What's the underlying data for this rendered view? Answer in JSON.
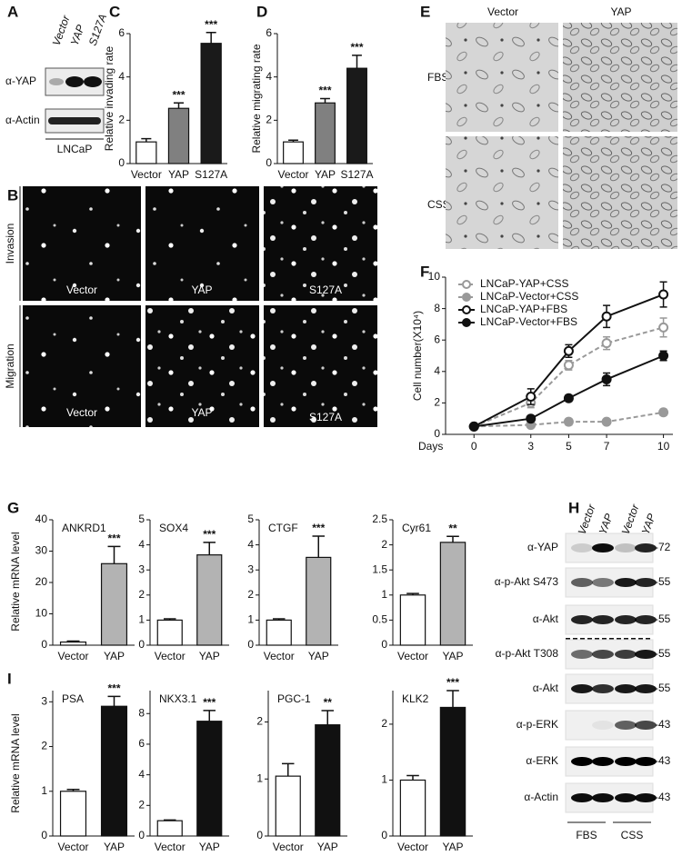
{
  "panel_labels": [
    "A",
    "B",
    "C",
    "D",
    "E",
    "F",
    "G",
    "H",
    "I"
  ],
  "blot_a": {
    "lanes": [
      "Vector",
      "YAP",
      "S127A"
    ],
    "rows": [
      "α-YAP",
      "α-Actin"
    ],
    "cell_line": "LNCaP"
  },
  "images_b": {
    "rows": [
      "Invasion",
      "Migration"
    ],
    "columns": [
      "Vector",
      "YAP",
      "S127A"
    ]
  },
  "images_e": {
    "columns": [
      "Vector",
      "YAP"
    ],
    "rows": [
      "FBS",
      "CSS"
    ]
  },
  "blot_h": {
    "lanes": [
      "Vector",
      "YAP",
      "Vector",
      "YAP"
    ],
    "rows": [
      {
        "label": "α-YAP",
        "mw": "-72"
      },
      {
        "label": "α-p-Akt S473",
        "mw": "-55"
      },
      {
        "label": "α-Akt",
        "mw": "-55"
      },
      {
        "label": "α-p-Akt T308",
        "mw": "-55"
      },
      {
        "label": "α-Akt",
        "mw": "-55"
      },
      {
        "label": "α-p-ERK",
        "mw": "-43"
      },
      {
        "label": "α-ERK",
        "mw": "-43"
      },
      {
        "label": "α-Actin",
        "mw": "-43"
      }
    ],
    "groups": [
      "FBS",
      "CSS"
    ]
  },
  "mrna_ylabel": "Relative mRNA level",
  "chart_data": [
    {
      "type": "bar",
      "ylabel": "Relative invading rate",
      "categories": [
        "Vector",
        "YAP",
        "S127A"
      ],
      "values": [
        1,
        2.55,
        5.55
      ],
      "errors": [
        0.15,
        0.25,
        0.5
      ],
      "significance": [
        null,
        "***",
        "***"
      ],
      "colors": [
        "#ffffff",
        "#808080",
        "#1a1a1a"
      ],
      "ylim": [
        0,
        6
      ],
      "yticks": [
        0,
        2,
        4,
        6
      ]
    },
    {
      "type": "bar",
      "ylabel": "Relative migrating rate",
      "categories": [
        "Vector",
        "YAP",
        "S127A"
      ],
      "values": [
        1,
        2.8,
        4.4
      ],
      "errors": [
        0.08,
        0.2,
        0.6
      ],
      "significance": [
        null,
        "***",
        "***"
      ],
      "colors": [
        "#ffffff",
        "#808080",
        "#1a1a1a"
      ],
      "ylim": [
        0,
        6
      ],
      "yticks": [
        0,
        2,
        4,
        6
      ]
    },
    {
      "type": "line",
      "ylabel": "Cell number(X10⁴)",
      "xlabel": "Days",
      "x": [
        0,
        3,
        5,
        7,
        10
      ],
      "xlim": [
        -1.5,
        10.5
      ],
      "xticks": [
        0,
        3,
        5,
        7,
        10
      ],
      "ylim": [
        0,
        10
      ],
      "yticks": [
        0,
        2,
        4,
        6,
        8,
        10
      ],
      "legend": "upper left",
      "series": [
        {
          "name": "LNCaP-YAP+CSS",
          "color": "#999999",
          "dashed": true,
          "marker": "open",
          "values": [
            0.5,
            2.0,
            4.4,
            5.8,
            6.8
          ],
          "errors": [
            0.05,
            0.3,
            0.3,
            0.4,
            0.6
          ]
        },
        {
          "name": "LNCaP-Vector+CSS",
          "color": "#999999",
          "dashed": true,
          "marker": "filled",
          "values": [
            0.5,
            0.6,
            0.8,
            0.8,
            1.4
          ],
          "errors": [
            0.05,
            0.1,
            0.2,
            0.15,
            0.2
          ]
        },
        {
          "name": "LNCaP-YAP+FBS",
          "color": "#111111",
          "dashed": false,
          "marker": "open",
          "values": [
            0.5,
            2.4,
            5.3,
            7.5,
            8.9
          ],
          "errors": [
            0.05,
            0.5,
            0.4,
            0.7,
            0.8
          ]
        },
        {
          "name": "LNCaP-Vector+FBS",
          "color": "#111111",
          "dashed": false,
          "marker": "filled",
          "values": [
            0.5,
            1.0,
            2.3,
            3.5,
            5.0
          ],
          "errors": [
            0.05,
            0.15,
            0.2,
            0.4,
            0.3
          ]
        }
      ]
    },
    {
      "type": "bar",
      "title": "ANKRD1",
      "categories": [
        "Vector",
        "YAP"
      ],
      "values": [
        1,
        26
      ],
      "errors": [
        0.3,
        5.5
      ],
      "significance": [
        null,
        "***"
      ],
      "colors": [
        "#ffffff",
        "#b3b3b3"
      ],
      "ylim": [
        0,
        40
      ],
      "yticks": [
        0,
        10,
        20,
        30,
        40
      ]
    },
    {
      "type": "bar",
      "title": "SOX4",
      "categories": [
        "Vector",
        "YAP"
      ],
      "values": [
        1,
        3.6
      ],
      "errors": [
        0.05,
        0.5
      ],
      "significance": [
        null,
        "***"
      ],
      "colors": [
        "#ffffff",
        "#b3b3b3"
      ],
      "ylim": [
        0,
        5
      ],
      "yticks": [
        0,
        1,
        2,
        3,
        4,
        5
      ]
    },
    {
      "type": "bar",
      "title": "CTGF",
      "categories": [
        "Vector",
        "YAP"
      ],
      "values": [
        1,
        3.5
      ],
      "errors": [
        0.05,
        0.85
      ],
      "significance": [
        null,
        "***"
      ],
      "colors": [
        "#ffffff",
        "#b3b3b3"
      ],
      "ylim": [
        0,
        5
      ],
      "yticks": [
        0,
        1,
        2,
        3,
        4,
        5
      ]
    },
    {
      "type": "bar",
      "title": "Cyr61",
      "categories": [
        "Vector",
        "YAP"
      ],
      "values": [
        1,
        2.05
      ],
      "errors": [
        0.03,
        0.12
      ],
      "significance": [
        null,
        "**"
      ],
      "colors": [
        "#ffffff",
        "#b3b3b3"
      ],
      "ylim": [
        0,
        2.5
      ],
      "yticks": [
        0,
        0.5,
        1,
        1.5,
        2,
        2.5
      ]
    },
    {
      "type": "bar",
      "title": "PSA",
      "categories": [
        "Vector",
        "YAP"
      ],
      "values": [
        1,
        2.9
      ],
      "errors": [
        0.04,
        0.22
      ],
      "significance": [
        null,
        "***"
      ],
      "colors": [
        "#ffffff",
        "#111111"
      ],
      "ylim": [
        0,
        3.25
      ],
      "yticks": [
        0,
        1,
        2,
        3
      ]
    },
    {
      "type": "bar",
      "title": "NKX3.1",
      "categories": [
        "Vector",
        "YAP"
      ],
      "values": [
        1,
        7.5
      ],
      "errors": [
        0.05,
        0.7
      ],
      "significance": [
        null,
        "***"
      ],
      "colors": [
        "#ffffff",
        "#111111"
      ],
      "ylim": [
        0,
        9.5
      ],
      "yticks": [
        0,
        2,
        4,
        6,
        8
      ]
    },
    {
      "type": "bar",
      "title": "PGC-1",
      "categories": [
        "Vector",
        "YAP"
      ],
      "values": [
        1.05,
        1.95
      ],
      "errors": [
        0.22,
        0.25
      ],
      "significance": [
        null,
        "**"
      ],
      "colors": [
        "#ffffff",
        "#111111"
      ],
      "ylim": [
        0,
        2.55
      ],
      "yticks": [
        0,
        1,
        2
      ]
    },
    {
      "type": "bar",
      "title": "KLK2",
      "categories": [
        "Vector",
        "YAP"
      ],
      "values": [
        1,
        2.3
      ],
      "errors": [
        0.08,
        0.3
      ],
      "significance": [
        null,
        "***"
      ],
      "colors": [
        "#ffffff",
        "#111111"
      ],
      "ylim": [
        0,
        2.6
      ],
      "yticks": [
        0,
        1,
        2
      ]
    }
  ]
}
